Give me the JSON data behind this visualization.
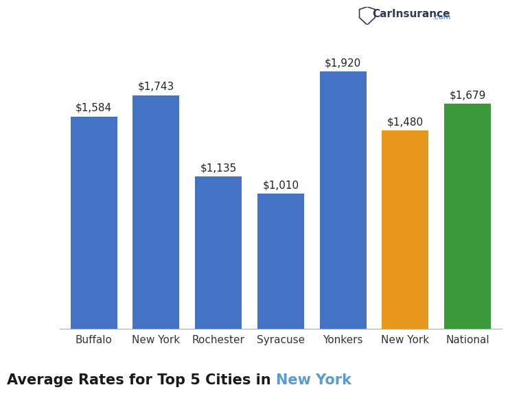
{
  "categories": [
    "Buffalo",
    "New York",
    "Rochester",
    "Syracuse",
    "Yonkers",
    "New York",
    "National"
  ],
  "values": [
    1584,
    1743,
    1135,
    1010,
    1920,
    1480,
    1679
  ],
  "labels": [
    "$1,584",
    "$1,743",
    "$1,135",
    "$1,010",
    "$1,920",
    "$1,480",
    "$1,679"
  ],
  "bar_colors": [
    "#4472C4",
    "#4472C4",
    "#4472C4",
    "#4472C4",
    "#4472C4",
    "#E8981D",
    "#3A9A3A"
  ],
  "title_main": "Average Rates for Top 5 Cities in ",
  "title_highlight": "New York",
  "title_highlight_color": "#5B9BD5",
  "title_fontsize": 15,
  "label_fontsize": 11,
  "tick_fontsize": 11,
  "background_color": "#ffffff",
  "ylim": [
    0,
    2150
  ],
  "bar_width": 0.75,
  "logo_text": "CarInsurance",
  "logo_com": ".com",
  "logo_color": "#2E3A4E",
  "logo_com_color": "#4472C4"
}
